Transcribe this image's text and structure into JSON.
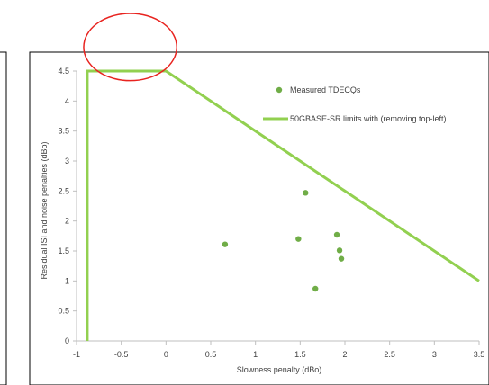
{
  "chart_data": {
    "type": "scatter",
    "xlabel": "Slowness penalty (dBo)",
    "ylabel": "Residual ISI and noise penalties (dBo)",
    "xlim": [
      -1,
      3.5
    ],
    "ylim": [
      0,
      4.5
    ],
    "x_ticks": [
      -1,
      -0.5,
      0,
      0.5,
      1,
      1.5,
      2,
      2.5,
      3,
      3.5
    ],
    "x_tick_labels": [
      "-1",
      "-0.5",
      "0",
      "0.5",
      "1",
      "1.5",
      "2",
      "2.5",
      "3",
      "3.5"
    ],
    "y_ticks": [
      0,
      0.5,
      1,
      1.5,
      2,
      2.5,
      3,
      3.5,
      4,
      4.5
    ],
    "y_tick_labels": [
      "0",
      "0.5",
      "1",
      "1.5",
      "2",
      "2.5",
      "3",
      "3.5",
      "4",
      "4.5"
    ],
    "grid": false,
    "legend_position": "top-right",
    "series": [
      {
        "name": "Measured TDECQs",
        "kind": "scatter",
        "color": "#70ad47",
        "x": [
          0.66,
          1.48,
          1.56,
          1.91,
          1.94,
          1.96,
          1.67
        ],
        "y": [
          1.61,
          1.7,
          2.47,
          1.77,
          1.51,
          1.37,
          0.87
        ]
      },
      {
        "name": "50GBASE-SR limits with (removing top-left)",
        "kind": "line",
        "color": "#92d050",
        "x": [
          -0.88,
          -0.88,
          0,
          3.5
        ],
        "y": [
          0,
          4.5,
          4.5,
          1.0
        ]
      }
    ],
    "annotations": [
      {
        "kind": "ellipse",
        "color": "#e8231f",
        "cx": -0.4,
        "cy": 4.9,
        "rx": 0.52,
        "ry": 0.56
      }
    ]
  }
}
